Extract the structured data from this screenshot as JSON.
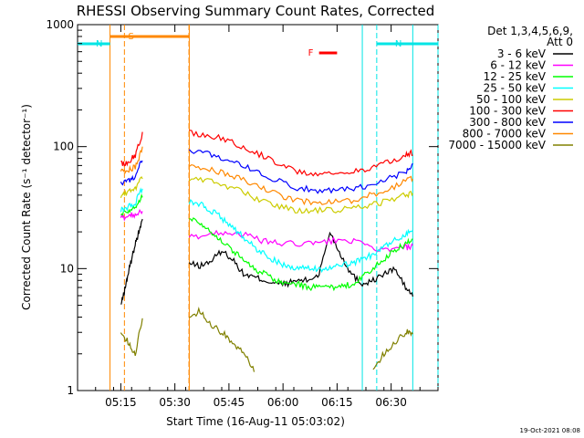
{
  "chart_data": {
    "type": "line",
    "title": "RHESSI Observing Summary Count Rates, Corrected",
    "xlabel": "Start Time (16-Aug-11 05:03:02)",
    "ylabel": "Corrected Count Rate (s⁻¹ detector⁻¹)",
    "x_unit": "minutes after 05:03:02",
    "xlim": [
      0,
      100
    ],
    "ylim": [
      1,
      1000
    ],
    "y_scale": "log",
    "x_ticks": [
      "05:15",
      "05:30",
      "05:45",
      "06:00",
      "06:15",
      "06:30"
    ],
    "y_ticks": [
      "1",
      "10",
      "100",
      "1000"
    ],
    "legend_title": [
      "Det 1,3,4,5,6,9,",
      "Att 0"
    ],
    "legend_position": "right",
    "data_gaps": [
      [
        9,
        13
      ],
      [
        31,
        30.9
      ],
      [
        79,
        83
      ],
      [
        93,
        100
      ]
    ],
    "series": [
      {
        "name": "3 - 6 keV",
        "color": "#000000",
        "x": [
          12,
          13,
          14,
          15,
          16,
          17,
          18,
          31,
          34,
          37,
          40,
          43,
          46,
          49,
          52,
          55,
          58,
          61,
          64,
          67,
          70,
          73,
          76,
          79,
          82,
          85,
          88,
          91,
          93
        ],
        "y": [
          5,
          6.5,
          9,
          12,
          16,
          20,
          25,
          11,
          10.5,
          11.5,
          14,
          12,
          9,
          8.5,
          8,
          7.5,
          7.5,
          8,
          8,
          9,
          20,
          13,
          9,
          7.5,
          8,
          9,
          10,
          7,
          6
        ]
      },
      {
        "name": "6 - 12 keV",
        "color": "#ff00ff",
        "x": [
          12,
          14,
          16,
          18,
          31,
          36,
          41,
          46,
          51,
          56,
          61,
          66,
          71,
          76,
          81,
          86,
          91,
          93
        ],
        "y": [
          26,
          27,
          28,
          30,
          18,
          19,
          20,
          19,
          17,
          16,
          16,
          16,
          17,
          17,
          15,
          14,
          15,
          15
        ]
      },
      {
        "name": "12 - 25 keV",
        "color": "#00ff00",
        "x": [
          12,
          14,
          16,
          18,
          31,
          34,
          37,
          40,
          43,
          46,
          49,
          52,
          55,
          58,
          61,
          64,
          67,
          70,
          73,
          76,
          79,
          82,
          85,
          88,
          91,
          93
        ],
        "y": [
          28,
          30,
          32,
          40,
          26,
          24,
          20,
          17,
          14,
          12,
          10,
          9,
          8,
          7.5,
          7.5,
          7,
          7,
          7,
          7,
          7.5,
          8.5,
          10,
          12,
          14,
          16,
          17
        ]
      },
      {
        "name": "25 - 50 keV",
        "color": "#00ffff",
        "x": [
          12,
          14,
          16,
          18,
          31,
          34,
          37,
          40,
          43,
          46,
          49,
          52,
          55,
          58,
          61,
          64,
          67,
          70,
          73,
          76,
          79,
          82,
          85,
          88,
          91,
          93
        ],
        "y": [
          30,
          32,
          35,
          45,
          35,
          34,
          30,
          26,
          22,
          18,
          15,
          13,
          11.5,
          10.5,
          10,
          10,
          10,
          10,
          10.5,
          11,
          12,
          13,
          15,
          17,
          19,
          21
        ]
      },
      {
        "name": "50 - 100 keV",
        "color": "#cccc00",
        "x": [
          12,
          14,
          16,
          18,
          31,
          36,
          41,
          46,
          51,
          56,
          61,
          66,
          71,
          76,
          81,
          86,
          91,
          93
        ],
        "y": [
          40,
          42,
          46,
          55,
          55,
          53,
          48,
          42,
          36,
          32,
          30,
          30,
          30,
          31,
          33,
          36,
          40,
          42
        ]
      },
      {
        "name": "100 - 300 keV",
        "color": "#ff0000",
        "x": [
          12,
          14,
          16,
          18,
          31,
          36,
          41,
          46,
          51,
          56,
          61,
          66,
          71,
          76,
          81,
          86,
          91,
          93
        ],
        "y": [
          72,
          75,
          85,
          130,
          130,
          125,
          115,
          100,
          85,
          72,
          62,
          60,
          60,
          62,
          66,
          74,
          85,
          90
        ]
      },
      {
        "name": "300 - 800 keV",
        "color": "#0000ff",
        "x": [
          12,
          14,
          16,
          18,
          31,
          36,
          41,
          46,
          51,
          56,
          61,
          66,
          71,
          76,
          81,
          86,
          91,
          93
        ],
        "y": [
          50,
          52,
          58,
          80,
          92,
          88,
          80,
          70,
          60,
          52,
          46,
          44,
          44,
          45,
          48,
          54,
          62,
          70
        ]
      },
      {
        "name": "800 - 7000 keV",
        "color": "#ff8800",
        "x": [
          12,
          14,
          16,
          18,
          31,
          36,
          41,
          46,
          51,
          56,
          61,
          66,
          71,
          76,
          81,
          86,
          91,
          93
        ],
        "y": [
          62,
          64,
          68,
          95,
          68,
          66,
          60,
          53,
          46,
          40,
          36,
          35,
          35,
          36,
          40,
          44,
          52,
          56
        ]
      },
      {
        "name": "7000 - 15000 keV",
        "color": "#808000",
        "x": [
          12,
          14,
          16,
          18,
          31,
          34,
          37,
          40,
          43,
          46,
          49,
          82,
          85,
          88,
          91,
          93
        ],
        "y": [
          3,
          2.5,
          2,
          4,
          4,
          4.5,
          3.5,
          3,
          2.5,
          2,
          1.5,
          1.5,
          2,
          2.5,
          3,
          3
        ]
      }
    ],
    "flags": [
      {
        "label": "S",
        "color": "#ff8800",
        "x_start": 9,
        "x_end": 31
      },
      {
        "label": "N",
        "color": "#00e5e5",
        "x_start": 0,
        "x_end": 9
      },
      {
        "label": "N",
        "color": "#00e5e5",
        "x_start": 83,
        "x_end": 100
      },
      {
        "label": "F",
        "color": "#ff0000",
        "x_start": 67,
        "x_end": 72
      }
    ],
    "footer_timestamp": "19-Oct-2021 08:08"
  }
}
